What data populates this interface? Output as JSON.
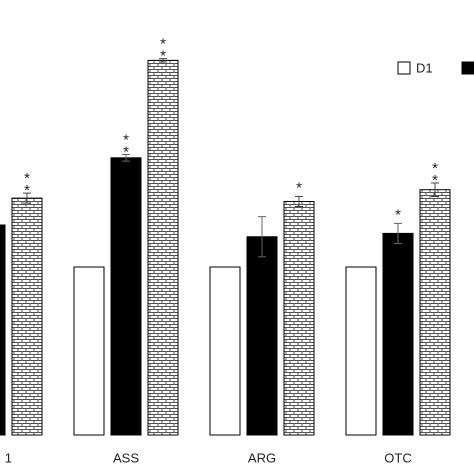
{
  "chart_data": {
    "type": "bar",
    "categories": [
      "1",
      "ASS",
      "ARG",
      "OTC"
    ],
    "series": [
      {
        "name": "D1",
        "color": "#ffffff",
        "values": [
          null,
          1.0,
          1.0,
          1.0
        ],
        "errors": [
          null,
          0,
          0,
          0
        ],
        "marks": [
          null,
          null,
          null,
          null
        ]
      },
      {
        "color": "#000000",
        "values": [
          1.25,
          1.65,
          1.18,
          1.2
        ],
        "errors": [
          null,
          0.02,
          0.12,
          0.06
        ],
        "marks": [
          null,
          "**",
          null,
          "*"
        ]
      },
      {
        "color": "#ffffff",
        "pattern": "brick",
        "values": [
          1.41,
          2.23,
          1.39,
          1.46
        ],
        "errors": [
          0.03,
          0.01,
          0.03,
          0.04
        ],
        "marks": [
          "**",
          "**",
          "*",
          "**"
        ]
      }
    ],
    "ylim": [
      0,
      2.5
    ]
  }
}
